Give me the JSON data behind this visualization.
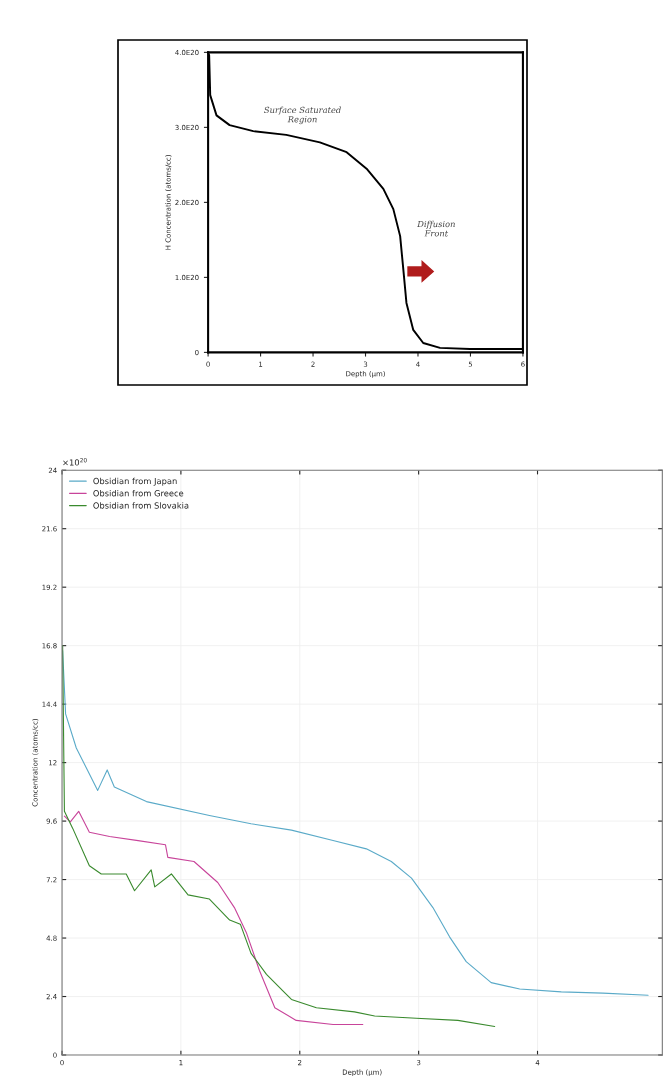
{
  "chart_data": [
    {
      "type": "line",
      "xlabel": "Depth (µm)",
      "ylabel": "H Concentration (atoms/cc)",
      "xlim": [
        0,
        6
      ],
      "xticks": [
        0,
        1,
        2,
        3,
        4,
        5,
        6
      ],
      "ylim": [
        0,
        4e+20
      ],
      "yticks": [
        {
          "value": 0,
          "label": "0"
        },
        {
          "value": 1e+20,
          "label": "1.0E20"
        },
        {
          "value": 2e+20,
          "label": "2.0E20"
        },
        {
          "value": 3e+20,
          "label": "3.0E20"
        },
        {
          "value": 4e+20,
          "label": "4.0E20"
        }
      ],
      "grid": false,
      "legend": false,
      "x": [
        0,
        0.02,
        0.04,
        0.16,
        0.41,
        0.86,
        1.49,
        2.13,
        2.64,
        3.02,
        3.34,
        3.53,
        3.66,
        3.72,
        3.78,
        3.91,
        4.1,
        4.42,
        4.99,
        6
      ],
      "series": [
        {
          "color": "#000000",
          "values": [
            4e+20,
            3.96e+20,
            3.43e+20,
            3.16e+20,
            3.03e+20,
            2.95e+20,
            2.9e+20,
            2.8e+20,
            2.67e+20,
            2.45e+20,
            2.18e+20,
            1.91e+20,
            1.55e+20,
            1.11e+20,
            6.6e+19,
            3e+19,
            1.25e+19,
            6e+18,
            4.5e+18,
            4.5e+18
          ]
        }
      ],
      "annotations": [
        "Surface Saturated\nRegion",
        "Diffusion\nFront"
      ]
    },
    {
      "type": "line",
      "xlabel": "Depth (µm)",
      "ylabel": "Concentration (atoms/cc)",
      "xlim": [
        0,
        5.05
      ],
      "xticks": [
        0,
        1,
        2,
        3,
        4
      ],
      "ylim": [
        0,
        24
      ],
      "yticks": [
        0,
        2.4,
        4.8,
        7.2,
        9.6,
        12,
        14.4,
        16.8,
        19.2,
        21.6,
        24
      ],
      "grid": true,
      "legend": "top left",
      "annotations": [
        "×10$^{20}$"
      ],
      "series": [
        {
          "name": "Obsidian from Japan",
          "color": "#5aaac8",
          "x": [
            0.005,
            0.03,
            0.12,
            0.3,
            0.38,
            0.44,
            0.71,
            1.24,
            1.59,
            1.93,
            2.28,
            2.56,
            2.77,
            2.94,
            3.12,
            3.26,
            3.4,
            3.61,
            3.85,
            4.2,
            4.55,
            4.93
          ],
          "values": [
            16.6,
            14.0,
            12.6,
            10.86,
            11.7,
            11.0,
            10.4,
            9.83,
            9.49,
            9.23,
            8.8,
            8.46,
            7.94,
            7.26,
            6.05,
            4.85,
            3.83,
            2.97,
            2.71,
            2.59,
            2.54,
            2.45
          ]
        },
        {
          "name": "Obsidian from Greece",
          "color": "#c8449a",
          "x": [
            0.02,
            0.07,
            0.14,
            0.23,
            0.4,
            0.64,
            0.87,
            0.89,
            1.11,
            1.31,
            1.45,
            1.55,
            1.66,
            1.79,
            1.97,
            2.28,
            2.53
          ],
          "values": [
            9.8,
            9.57,
            10.0,
            9.14,
            8.97,
            8.8,
            8.63,
            8.11,
            7.94,
            7.08,
            6.05,
            5.03,
            3.48,
            1.94,
            1.42,
            1.25,
            1.25
          ]
        },
        {
          "name": "Obsidian from Slovakia",
          "color": "#3a8a2e",
          "x": [
            0.005,
            0.02,
            0.09,
            0.23,
            0.33,
            0.54,
            0.61,
            0.75,
            0.78,
            0.92,
            1.06,
            1.24,
            1.41,
            1.5,
            1.59,
            1.72,
            1.86,
            1.93,
            2.14,
            2.46,
            2.63,
            2.98,
            3.33,
            3.64
          ],
          "values": [
            16.8,
            10.0,
            9.3,
            7.77,
            7.43,
            7.43,
            6.74,
            7.6,
            6.9,
            7.43,
            6.57,
            6.4,
            5.54,
            5.37,
            4.17,
            3.31,
            2.62,
            2.28,
            1.94,
            1.77,
            1.6,
            1.51,
            1.42,
            1.17
          ]
        }
      ]
    }
  ]
}
